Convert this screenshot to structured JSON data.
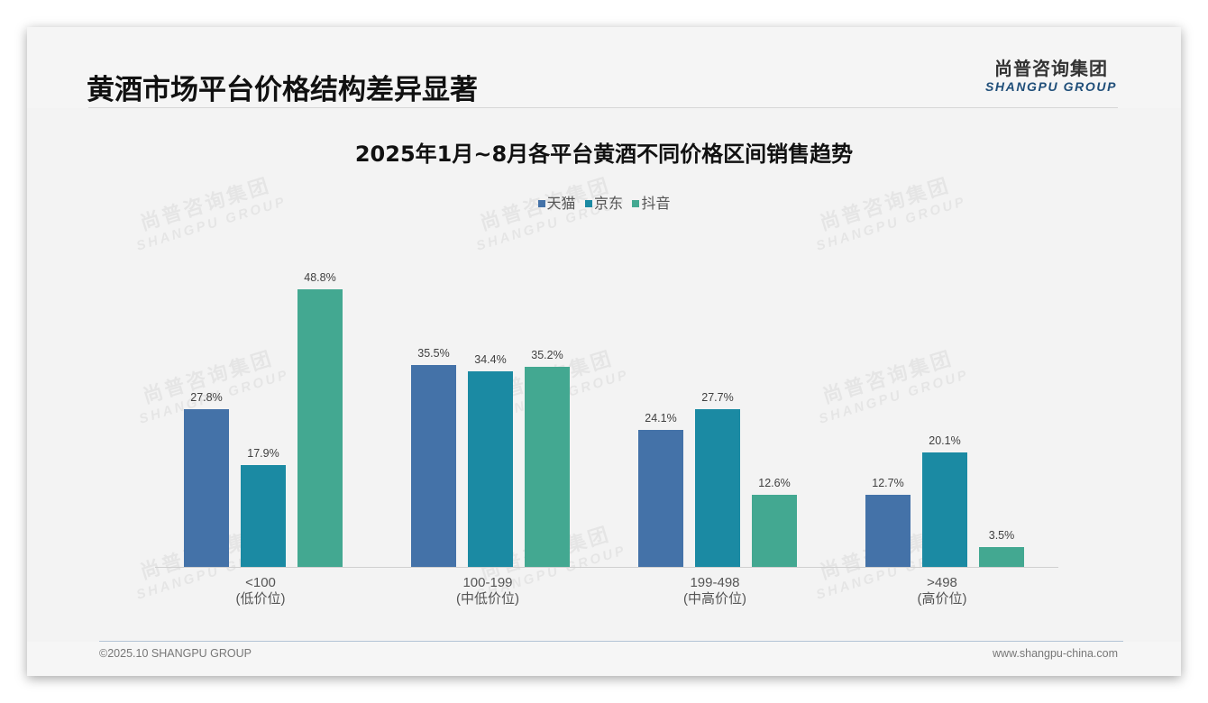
{
  "page": {
    "title": "黄酒市场平台价格结构差异显著",
    "logo": {
      "cn": "尚普咨询集团",
      "en": "SHANGPU GROUP"
    },
    "watermark": {
      "cn": "尚普咨询集团",
      "en": "SHANGPU GROUP"
    }
  },
  "footer": {
    "copyright": "©2025.10 SHANGPU GROUP",
    "website": "www.shangpu-china.com"
  },
  "legend": [
    {
      "label": "天猫",
      "color": "#4472a8"
    },
    {
      "label": "京东",
      "color": "#1b8aa3"
    },
    {
      "label": "抖音",
      "color": "#43a891"
    }
  ],
  "categories": [
    {
      "range": "<100",
      "tier": "(低价位)"
    },
    {
      "range": "100-199",
      "tier": "(中低价位)"
    },
    {
      "range": "199-498",
      "tier": "(中高价位)"
    },
    {
      "range": ">498",
      "tier": "(高价位)"
    }
  ],
  "labels": {
    "s0": [
      "27.8%",
      "35.5%",
      "24.1%",
      "12.7%"
    ],
    "s1": [
      "17.9%",
      "34.4%",
      "27.7%",
      "20.1%"
    ],
    "s2": [
      "48.8%",
      "35.2%",
      "12.6%",
      "3.5%"
    ]
  },
  "chart_data": {
    "type": "bar",
    "title": "2025年1月~8月各平台黄酒不同价格区间销售趋势",
    "categories": [
      "<100 (低价位)",
      "100-199 (中低价位)",
      "199-498 (中高价位)",
      ">498 (高价位)"
    ],
    "series": [
      {
        "name": "天猫",
        "color": "#4472a8",
        "values": [
          27.8,
          35.5,
          24.1,
          12.7
        ]
      },
      {
        "name": "京东",
        "color": "#1b8aa3",
        "values": [
          17.9,
          34.4,
          27.7,
          20.1
        ]
      },
      {
        "name": "抖音",
        "color": "#43a891",
        "values": [
          48.8,
          35.2,
          12.6,
          3.5
        ]
      }
    ],
    "xlabel": "",
    "ylabel": "",
    "unit": "%",
    "ylim": [
      0,
      50
    ],
    "grid": false,
    "legend_position": "top",
    "data_labels": true
  }
}
